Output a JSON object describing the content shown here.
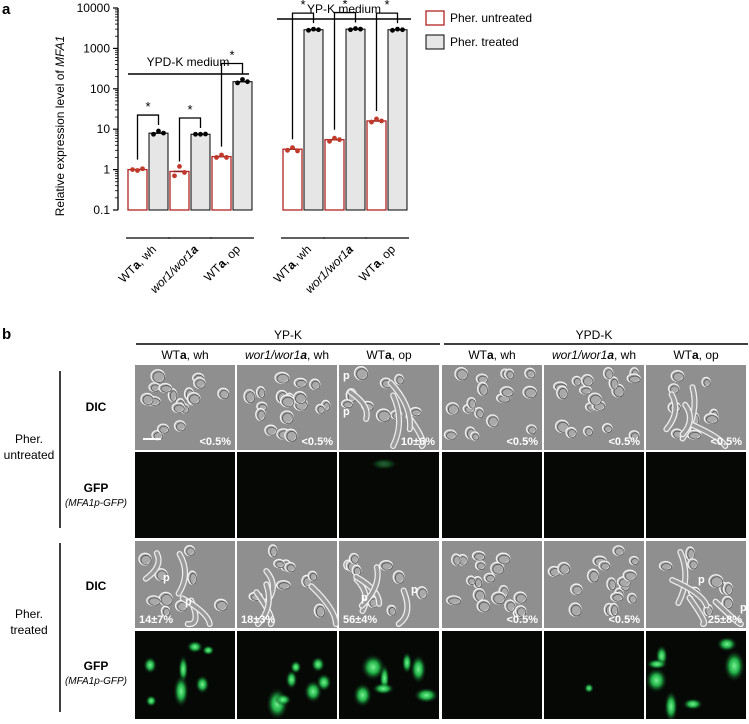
{
  "panel_a": {
    "label": "a",
    "ylabel_prefix": "Relative expression level of ",
    "ylabel_gene": "MFA1",
    "group_labels": [
      "YPD-K medium",
      "YP-K medium"
    ],
    "legend": [
      "Pher. untreated",
      "Pher. treated"
    ],
    "significance": "*",
    "strains": [
      {
        "a": "WT",
        "b": "a",
        "c": ", wh",
        "italic": false
      },
      {
        "a": "wor1/wor1",
        "b": "a",
        "c": "",
        "italic": true
      },
      {
        "a": "WT",
        "b": "a",
        "c": ", op",
        "italic": false
      },
      {
        "a": "WT",
        "b": "a",
        "c": ", wh",
        "italic": false
      },
      {
        "a": "wor1/wor1",
        "b": "a",
        "c": "",
        "italic": true
      },
      {
        "a": "WT",
        "b": "a",
        "c": ", op",
        "italic": false
      }
    ]
  },
  "chart_data": {
    "type": "bar",
    "yscale": "log",
    "ylim": [
      0.1,
      10000
    ],
    "yticks": [
      "0.1",
      "1",
      "10",
      "100",
      "1000",
      "10000"
    ],
    "ylabel": "Relative expression level of MFA1",
    "groups": [
      {
        "name": "YPD-K medium",
        "categories": [
          "WTa, wh",
          "wor1/wor1a",
          "WTa, op"
        ]
      },
      {
        "name": "YP-K medium",
        "categories": [
          "WTa, wh",
          "wor1/wor1a",
          "WTa, op"
        ]
      }
    ],
    "series": [
      {
        "name": "Pher. untreated",
        "color": "#b22222",
        "values": [
          1.0,
          0.9,
          2.1,
          3.2,
          5.5,
          16
        ],
        "points": [
          [
            1.0,
            0.95,
            1.05
          ],
          [
            0.7,
            1.2,
            0.85
          ],
          [
            2.0,
            2.3,
            2.0
          ],
          [
            3.0,
            3.5,
            2.9
          ],
          [
            5.0,
            6.0,
            5.5
          ],
          [
            15,
            18,
            16
          ]
        ]
      },
      {
        "name": "Pher. treated",
        "color": "#e6e6e6",
        "values": [
          8,
          7.5,
          150,
          2900,
          3000,
          2900
        ],
        "points": [
          [
            7.5,
            9,
            8
          ],
          [
            7.5,
            7.5,
            7.6
          ],
          [
            140,
            170,
            150
          ],
          [
            2800,
            3000,
            2900
          ],
          [
            2900,
            3100,
            3000
          ],
          [
            2800,
            3000,
            2900
          ]
        ]
      }
    ],
    "significant": [
      true,
      true,
      true,
      true,
      true,
      true
    ]
  },
  "panel_b": {
    "label": "b",
    "media": [
      "YP-K",
      "YPD-K"
    ],
    "columns": [
      {
        "a": "WT",
        "b": "a",
        "c": ", wh",
        "italic": false
      },
      {
        "a": "wor1/wor1",
        "b": "a",
        "c": ", wh",
        "italic": true
      },
      {
        "a": "WT",
        "b": "a",
        "c": ", op",
        "italic": false
      },
      {
        "a": "WT",
        "b": "a",
        "c": ", wh",
        "italic": false
      },
      {
        "a": "wor1/wor1",
        "b": "a",
        "c": ", wh",
        "italic": true
      },
      {
        "a": "WT",
        "b": "a",
        "c": ", op",
        "italic": false
      }
    ],
    "conditions": [
      {
        "line1": "Pher.",
        "line2": "untreated"
      },
      {
        "line1": "Pher.",
        "line2": "treated"
      }
    ],
    "rows": [
      "DIC",
      "GFP",
      "DIC",
      "GFP"
    ],
    "gfp_sub": "(MFA1p-GFP)",
    "untreated_pct": [
      "<0.5%",
      "<0.5%",
      "10±6%",
      "<0.5%",
      "<0.5%",
      "<0.5%"
    ],
    "treated_pct": [
      "14±7%",
      "18±3%",
      "56±4%",
      "<0.5%",
      "<0.5%",
      "25±8%"
    ],
    "p_mark": "p"
  }
}
